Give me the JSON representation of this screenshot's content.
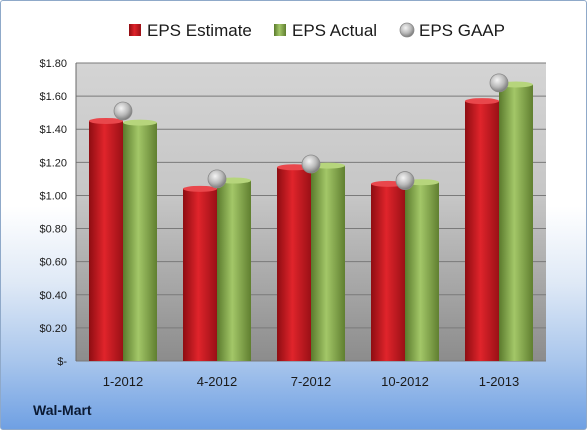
{
  "chart_data": {
    "type": "bar",
    "categories": [
      "1-2012",
      "4-2012",
      "7-2012",
      "10-2012",
      "1-2013"
    ],
    "series": [
      {
        "name": "EPS Estimate",
        "values": [
          1.45,
          1.04,
          1.17,
          1.07,
          1.57
        ],
        "color": "#c0141c"
      },
      {
        "name": "EPS Actual",
        "values": [
          1.44,
          1.09,
          1.18,
          1.08,
          1.67
        ],
        "color": "#7ea346"
      }
    ],
    "gaap": {
      "name": "EPS GAAP",
      "values": [
        1.51,
        1.1,
        1.19,
        1.09,
        1.68
      ],
      "color": "#b7b7b7"
    },
    "ylim": [
      0,
      1.8
    ],
    "yticks": [
      {
        "value": 0,
        "label": "$-"
      },
      {
        "value": 0.2,
        "label": "$0.20"
      },
      {
        "value": 0.4,
        "label": "$0.40"
      },
      {
        "value": 0.6,
        "label": "$0.60"
      },
      {
        "value": 0.8,
        "label": "$0.80"
      },
      {
        "value": 1.0,
        "label": "$1.00"
      },
      {
        "value": 1.2,
        "label": "$1.20"
      },
      {
        "value": 1.4,
        "label": "$1.40"
      },
      {
        "value": 1.6,
        "label": "$1.60"
      },
      {
        "value": 1.8,
        "label": "$1.80"
      }
    ],
    "legend_position": "top",
    "grid": true
  },
  "footer": {
    "company": "Wal-Mart"
  }
}
